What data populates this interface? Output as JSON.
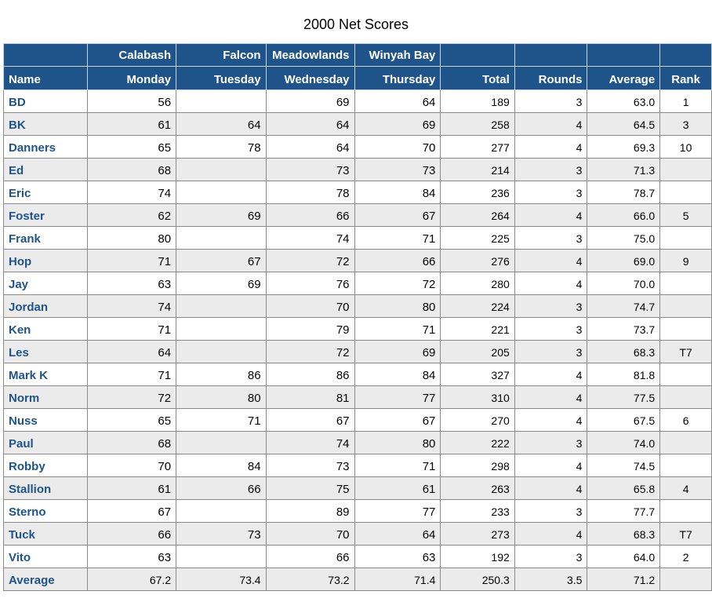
{
  "title": "2000 Net Scores",
  "header": {
    "courses": [
      "",
      "Calabash",
      "Falcon",
      "Meadowlands",
      "Winyah Bay",
      "",
      "",
      "",
      ""
    ],
    "columns": [
      "Name",
      "Monday",
      "Tuesday",
      "Wednesday",
      "Thursday",
      "Total",
      "Rounds",
      "Average",
      "Rank"
    ]
  },
  "rows": [
    {
      "name": "BD",
      "mon": "56",
      "tue": "",
      "wed": "69",
      "thu": "64",
      "total": "189",
      "rounds": "3",
      "avg": "63.0",
      "rank": "1"
    },
    {
      "name": "BK",
      "mon": "61",
      "tue": "64",
      "wed": "64",
      "thu": "69",
      "total": "258",
      "rounds": "4",
      "avg": "64.5",
      "rank": "3"
    },
    {
      "name": "Danners",
      "mon": "65",
      "tue": "78",
      "wed": "64",
      "thu": "70",
      "total": "277",
      "rounds": "4",
      "avg": "69.3",
      "rank": "10"
    },
    {
      "name": "Ed",
      "mon": "68",
      "tue": "",
      "wed": "73",
      "thu": "73",
      "total": "214",
      "rounds": "3",
      "avg": "71.3",
      "rank": ""
    },
    {
      "name": "Eric",
      "mon": "74",
      "tue": "",
      "wed": "78",
      "thu": "84",
      "total": "236",
      "rounds": "3",
      "avg": "78.7",
      "rank": ""
    },
    {
      "name": "Foster",
      "mon": "62",
      "tue": "69",
      "wed": "66",
      "thu": "67",
      "total": "264",
      "rounds": "4",
      "avg": "66.0",
      "rank": "5"
    },
    {
      "name": "Frank",
      "mon": "80",
      "tue": "",
      "wed": "74",
      "thu": "71",
      "total": "225",
      "rounds": "3",
      "avg": "75.0",
      "rank": ""
    },
    {
      "name": "Hop",
      "mon": "71",
      "tue": "67",
      "wed": "72",
      "thu": "66",
      "total": "276",
      "rounds": "4",
      "avg": "69.0",
      "rank": "9"
    },
    {
      "name": "Jay",
      "mon": "63",
      "tue": "69",
      "wed": "76",
      "thu": "72",
      "total": "280",
      "rounds": "4",
      "avg": "70.0",
      "rank": ""
    },
    {
      "name": "Jordan",
      "mon": "74",
      "tue": "",
      "wed": "70",
      "thu": "80",
      "total": "224",
      "rounds": "3",
      "avg": "74.7",
      "rank": ""
    },
    {
      "name": "Ken",
      "mon": "71",
      "tue": "",
      "wed": "79",
      "thu": "71",
      "total": "221",
      "rounds": "3",
      "avg": "73.7",
      "rank": ""
    },
    {
      "name": "Les",
      "mon": "64",
      "tue": "",
      "wed": "72",
      "thu": "69",
      "total": "205",
      "rounds": "3",
      "avg": "68.3",
      "rank": "T7"
    },
    {
      "name": "Mark K",
      "mon": "71",
      "tue": "86",
      "wed": "86",
      "thu": "84",
      "total": "327",
      "rounds": "4",
      "avg": "81.8",
      "rank": ""
    },
    {
      "name": "Norm",
      "mon": "72",
      "tue": "80",
      "wed": "81",
      "thu": "77",
      "total": "310",
      "rounds": "4",
      "avg": "77.5",
      "rank": ""
    },
    {
      "name": "Nuss",
      "mon": "65",
      "tue": "71",
      "wed": "67",
      "thu": "67",
      "total": "270",
      "rounds": "4",
      "avg": "67.5",
      "rank": "6"
    },
    {
      "name": "Paul",
      "mon": "68",
      "tue": "",
      "wed": "74",
      "thu": "80",
      "total": "222",
      "rounds": "3",
      "avg": "74.0",
      "rank": ""
    },
    {
      "name": "Robby",
      "mon": "70",
      "tue": "84",
      "wed": "73",
      "thu": "71",
      "total": "298",
      "rounds": "4",
      "avg": "74.5",
      "rank": ""
    },
    {
      "name": "Stallion",
      "mon": "61",
      "tue": "66",
      "wed": "75",
      "thu": "61",
      "total": "263",
      "rounds": "4",
      "avg": "65.8",
      "rank": "4"
    },
    {
      "name": "Sterno",
      "mon": "67",
      "tue": "",
      "wed": "89",
      "thu": "77",
      "total": "233",
      "rounds": "3",
      "avg": "77.7",
      "rank": ""
    },
    {
      "name": "Tuck",
      "mon": "66",
      "tue": "73",
      "wed": "70",
      "thu": "64",
      "total": "273",
      "rounds": "4",
      "avg": "68.3",
      "rank": "T7"
    },
    {
      "name": "Vito",
      "mon": "63",
      "tue": "",
      "wed": "66",
      "thu": "63",
      "total": "192",
      "rounds": "3",
      "avg": "64.0",
      "rank": "2"
    }
  ],
  "average_row": {
    "name": "Average",
    "mon": "67.2",
    "tue": "73.4",
    "wed": "73.2",
    "thu": "71.4",
    "total": "250.3",
    "rounds": "3.5",
    "avg": "71.2",
    "rank": ""
  }
}
